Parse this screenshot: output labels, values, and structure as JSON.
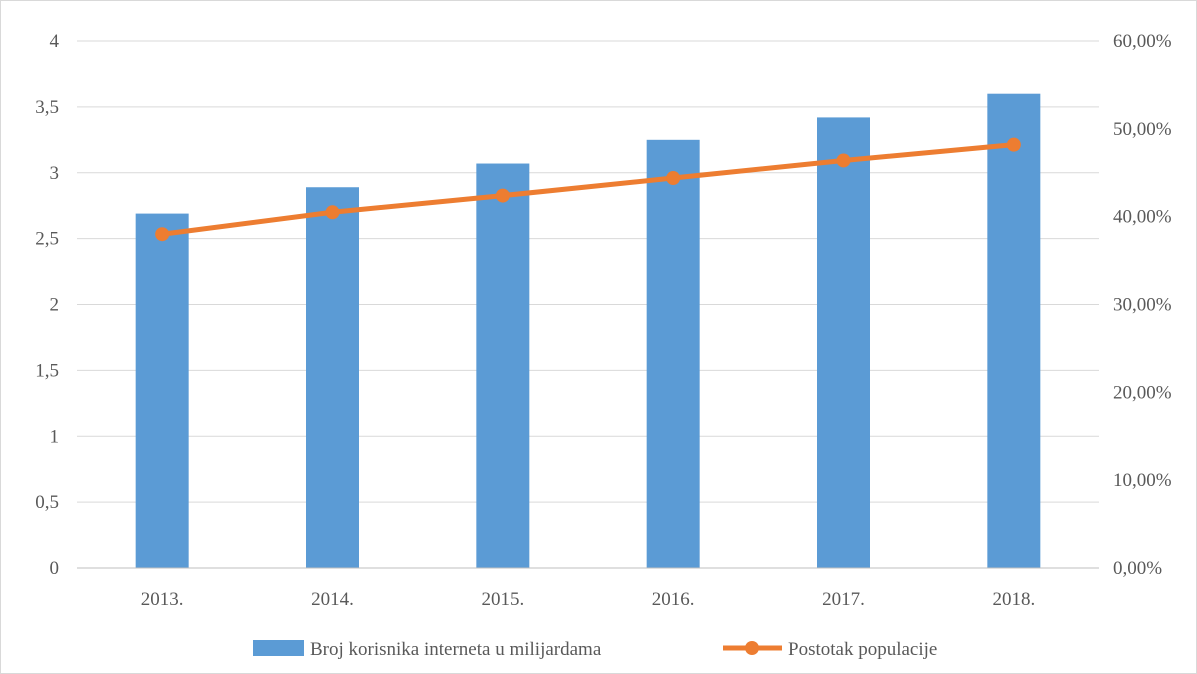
{
  "chart_data": {
    "type": "bar",
    "categories": [
      "2013.",
      "2014.",
      "2015.",
      "2016.",
      "2017.",
      "2018."
    ],
    "series": [
      {
        "name": "Broj korisnika interneta u milijardama",
        "type": "bar",
        "axis": "left",
        "color": "#5b9bd5",
        "values": [
          2.69,
          2.89,
          3.07,
          3.25,
          3.42,
          3.6
        ]
      },
      {
        "name": "Postotak populacije",
        "type": "line",
        "axis": "right",
        "color": "#ed7d31",
        "values": [
          0.38,
          0.405,
          0.424,
          0.444,
          0.464,
          0.482
        ]
      }
    ],
    "y_left": {
      "ylim": [
        0,
        4
      ],
      "ticks": [
        0,
        0.5,
        1,
        1.5,
        2,
        2.5,
        3,
        3.5,
        4
      ],
      "tick_labels": [
        "0",
        "0,5",
        "1",
        "1,5",
        "2",
        "2,5",
        "3",
        "3,5",
        "4"
      ]
    },
    "y_right": {
      "ylim": [
        0,
        0.6
      ],
      "ticks": [
        0,
        0.1,
        0.2,
        0.3,
        0.4,
        0.5,
        0.6
      ],
      "tick_labels": [
        "0,00%",
        "10,00%",
        "20,00%",
        "30,00%",
        "40,00%",
        "50,00%",
        "60,00%"
      ]
    },
    "grid": true,
    "legend_position": "bottom",
    "gridline_color": "#d9d9d9",
    "axis_line_color": "#bfbfbf"
  }
}
